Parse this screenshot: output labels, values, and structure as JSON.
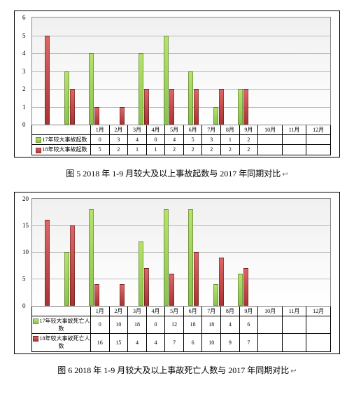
{
  "charts": [
    {
      "caption": "图 5 2018 年 1-9 月较大及以上事故起数与 2017 年同期对比",
      "months": [
        "1月",
        "2月",
        "3月",
        "4月",
        "5月",
        "6月",
        "7月",
        "8月",
        "9月",
        "10月",
        "11月",
        "12月"
      ],
      "rows": [
        {
          "label": "17年较大事故起数",
          "color": "bg",
          "values": [
            "0",
            "3",
            "4",
            "0",
            "4",
            "5",
            "3",
            "1",
            "2",
            "",
            "",
            ""
          ]
        },
        {
          "label": "18年较大事故起数",
          "color": "br",
          "values": [
            "5",
            "2",
            "1",
            "1",
            "2",
            "2",
            "2",
            "2",
            "2",
            "",
            "",
            ""
          ]
        }
      ],
      "ymax": 6,
      "yticks": [
        0,
        1,
        2,
        3,
        4,
        5,
        6
      ]
    },
    {
      "caption": "图 6 2018 年 1-9 月较大及以上事故死亡人数与 2017 年同期对比",
      "months": [
        "1月",
        "2月",
        "3月",
        "4月",
        "5月",
        "6月",
        "7月",
        "8月",
        "9月",
        "10月",
        "11月",
        "12月"
      ],
      "rows": [
        {
          "label": "17年较大事故死亡人数",
          "color": "bg",
          "values": [
            "0",
            "10",
            "18",
            "0",
            "12",
            "18",
            "18",
            "4",
            "6",
            "",
            "",
            ""
          ]
        },
        {
          "label": "18年较大事故死亡人数",
          "color": "br",
          "values": [
            "16",
            "15",
            "4",
            "4",
            "7",
            "6",
            "10",
            "9",
            "7",
            "",
            "",
            ""
          ]
        }
      ],
      "ymax": 20,
      "yticks": [
        0,
        5,
        10,
        15,
        20
      ]
    }
  ]
}
